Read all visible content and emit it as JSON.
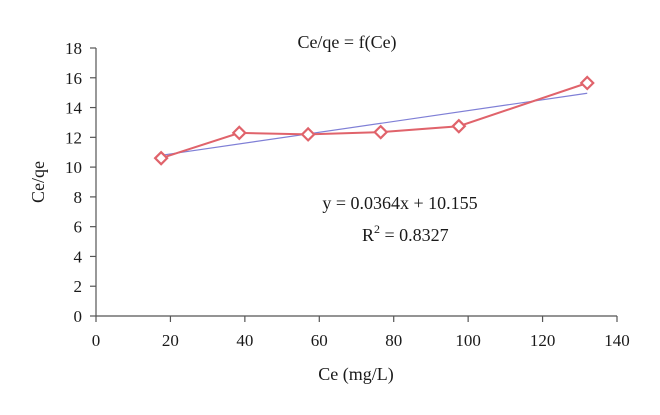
{
  "chart_data": {
    "type": "scatter",
    "title": "Ce/qe = f(Ce)",
    "xlabel": "Ce (mg/L)",
    "ylabel": "Ce/qe",
    "xlim": [
      0,
      140
    ],
    "ylim": [
      0,
      18
    ],
    "x_ticks": [
      0,
      20,
      40,
      60,
      80,
      100,
      120,
      140
    ],
    "y_ticks": [
      0,
      2,
      4,
      6,
      8,
      10,
      12,
      14,
      16,
      18
    ],
    "grid": false,
    "legend": "none",
    "series": [
      {
        "kind": "line-with-markers",
        "marker": "diamond",
        "color": "#e0636b",
        "x": [
          17.5,
          38.5,
          57,
          76.5,
          97.5,
          132
        ],
        "y": [
          10.6,
          12.3,
          12.2,
          12.35,
          12.75,
          15.65
        ]
      },
      {
        "kind": "trendline",
        "color": "#7f7fd6",
        "slope": 0.0364,
        "intercept": 10.155,
        "x_range": [
          17.5,
          132
        ]
      }
    ],
    "annotations": {
      "equation": "y = 0.0364x + 10.155",
      "r2_prefix": "R",
      "r2_sup": "2",
      "r2_value": " = 0.8327"
    }
  }
}
